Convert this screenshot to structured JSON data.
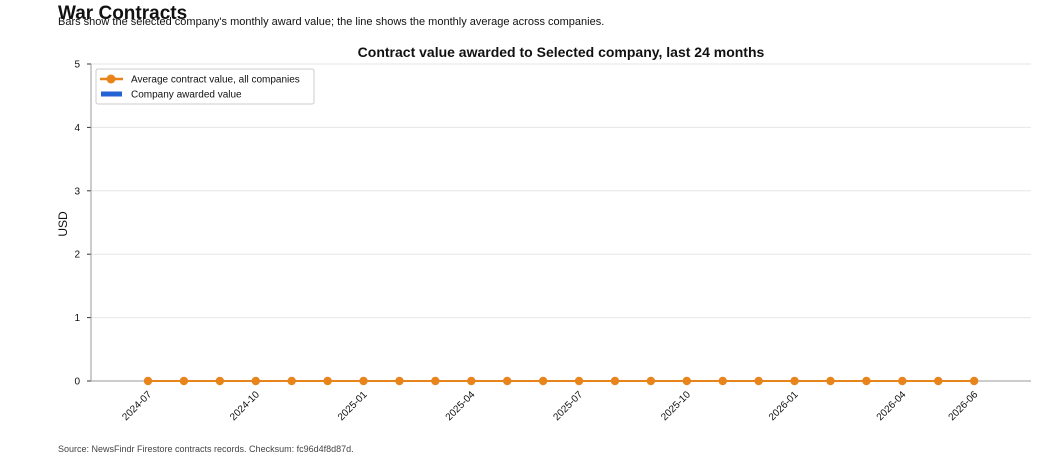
{
  "page": {
    "title": "War Contracts",
    "subtitle": "Bars show the selected company's monthly award value; the line shows the monthly average across companies.",
    "source": "Source: NewsFindr Firestore contracts records. Checksum: fc96d4f8d87d."
  },
  "chart_data": {
    "type": "bar",
    "title": "Contract value awarded to Selected company, last 24 months",
    "xlabel": "",
    "ylabel": "USD",
    "ylim": [
      0,
      5
    ],
    "yticks": [
      0,
      1,
      2,
      3,
      4,
      5
    ],
    "grid": "horizontal",
    "legend_position": "top-left",
    "x": [
      "2024-07",
      "2024-08",
      "2024-09",
      "2024-10",
      "2024-11",
      "2024-12",
      "2025-01",
      "2025-02",
      "2025-03",
      "2025-04",
      "2025-05",
      "2025-06",
      "2025-07",
      "2025-08",
      "2025-09",
      "2025-10",
      "2025-11",
      "2025-12",
      "2026-01",
      "2026-02",
      "2026-03",
      "2026-04",
      "2026-05",
      "2026-06"
    ],
    "xtick_labels": [
      "2024-07",
      "2024-10",
      "2025-01",
      "2025-04",
      "2025-07",
      "2025-10",
      "2026-01",
      "2026-04",
      "2026-06"
    ],
    "series": [
      {
        "name": "Average contract value, all companies",
        "kind": "line",
        "color": "#e8841c",
        "values": [
          0,
          0,
          0,
          0,
          0,
          0,
          0,
          0,
          0,
          0,
          0,
          0,
          0,
          0,
          0,
          0,
          0,
          0,
          0,
          0,
          0,
          0,
          0,
          0
        ]
      },
      {
        "name": "Company awarded value",
        "kind": "bar",
        "color": "#2463d4",
        "values": [
          0,
          0,
          0,
          0,
          0,
          0,
          0,
          0,
          0,
          0,
          0,
          0,
          0,
          0,
          0,
          0,
          0,
          0,
          0,
          0,
          0,
          0,
          0,
          0
        ]
      }
    ]
  }
}
